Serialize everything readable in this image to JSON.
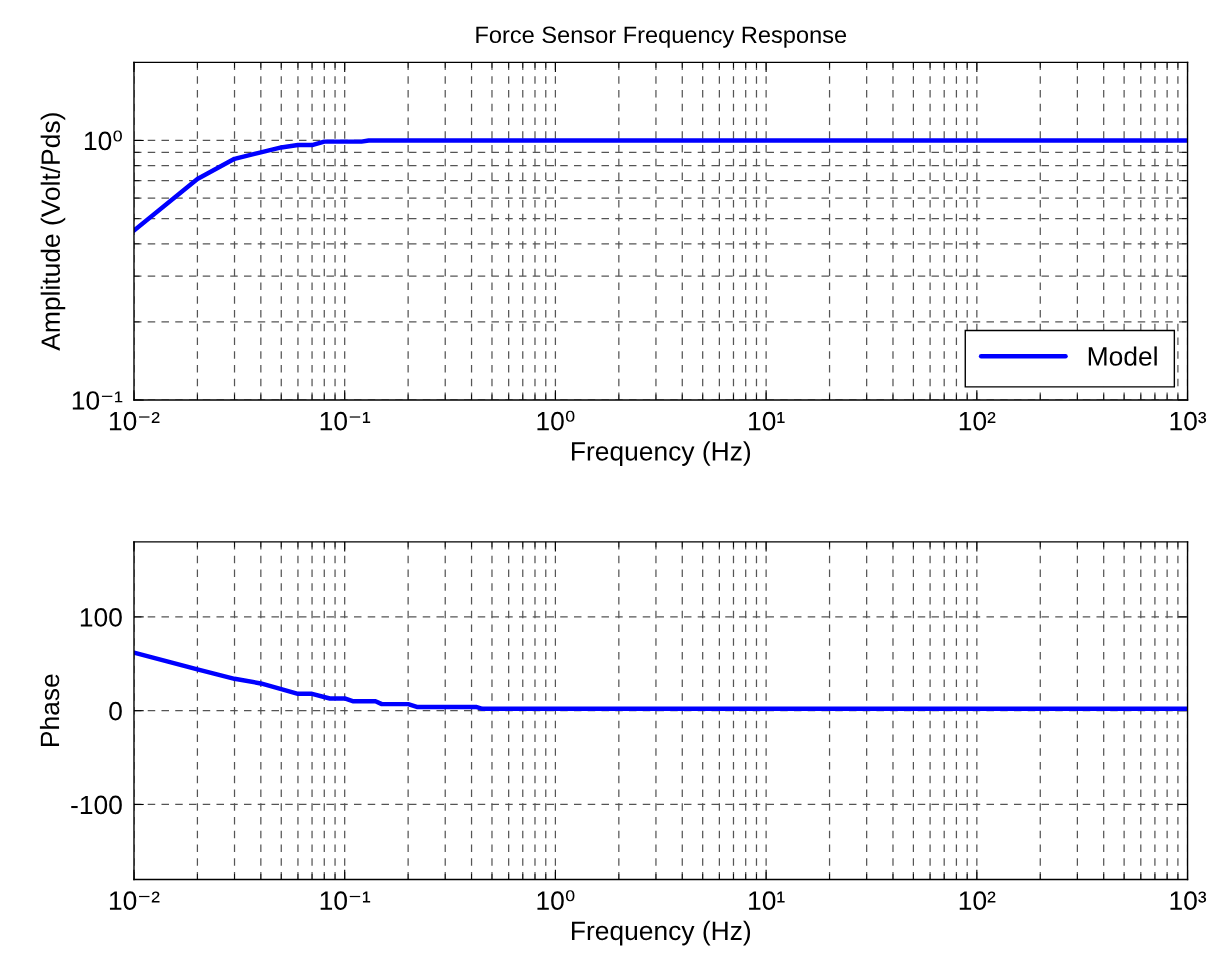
{
  "chart_data": [
    {
      "type": "line",
      "title": "Force Sensor Frequency Response",
      "xlabel": "Frequency (Hz)",
      "ylabel": "Amplitude (Volt/Pds)",
      "log": "xy",
      "grid": true,
      "legend": "bottom right",
      "line_style": "solid",
      "xlim": [
        0.01,
        1000
      ],
      "xticks": [
        {
          "value": 0.01,
          "label": "10⁻²"
        },
        {
          "value": 0.1,
          "label": "10⁻¹"
        },
        {
          "value": 1,
          "label": "10⁰"
        },
        {
          "value": 10,
          "label": "10¹"
        },
        {
          "value": 100,
          "label": "10²"
        },
        {
          "value": 1000,
          "label": "10³"
        }
      ],
      "ylim": [
        0.1,
        2
      ],
      "yticks": [
        {
          "value": 0.1,
          "label": "10⁻¹"
        },
        {
          "value": 1,
          "label": "10⁰"
        }
      ],
      "series": [
        {
          "name": "Model",
          "color": "#0000ff",
          "x": [
            0.01,
            0.02,
            0.03,
            0.04,
            0.05,
            0.06,
            0.07,
            0.08,
            0.12,
            0.13,
            1000
          ],
          "values": [
            0.45,
            0.71,
            0.85,
            0.9,
            0.94,
            0.96,
            0.96,
            0.99,
            0.99,
            1.0,
            1.0
          ]
        }
      ]
    },
    {
      "type": "line",
      "xlabel": "Frequency (Hz)",
      "ylabel": "Phase",
      "log": "x",
      "grid": true,
      "line_style": "solid",
      "xlim": [
        0.01,
        1000
      ],
      "xticks": [
        {
          "value": 0.01,
          "label": "10⁻²"
        },
        {
          "value": 0.1,
          "label": "10⁻¹"
        },
        {
          "value": 1,
          "label": "10⁰"
        },
        {
          "value": 10,
          "label": "10¹"
        },
        {
          "value": 100,
          "label": "10²"
        },
        {
          "value": 1000,
          "label": "10³"
        }
      ],
      "ylim": [
        -180,
        180
      ],
      "yticks": [
        -100,
        0,
        100
      ],
      "series": [
        {
          "color": "#0000ff",
          "x": [
            0.01,
            0.02,
            0.03,
            0.04,
            0.05,
            0.06,
            0.07,
            0.085,
            0.1,
            0.11,
            0.14,
            0.15,
            0.2,
            0.22,
            0.42,
            0.45,
            1000
          ],
          "values": [
            62,
            44,
            34,
            29,
            23,
            18,
            18,
            13,
            13,
            10,
            10,
            7,
            7,
            4,
            4,
            2,
            2
          ]
        }
      ]
    }
  ]
}
